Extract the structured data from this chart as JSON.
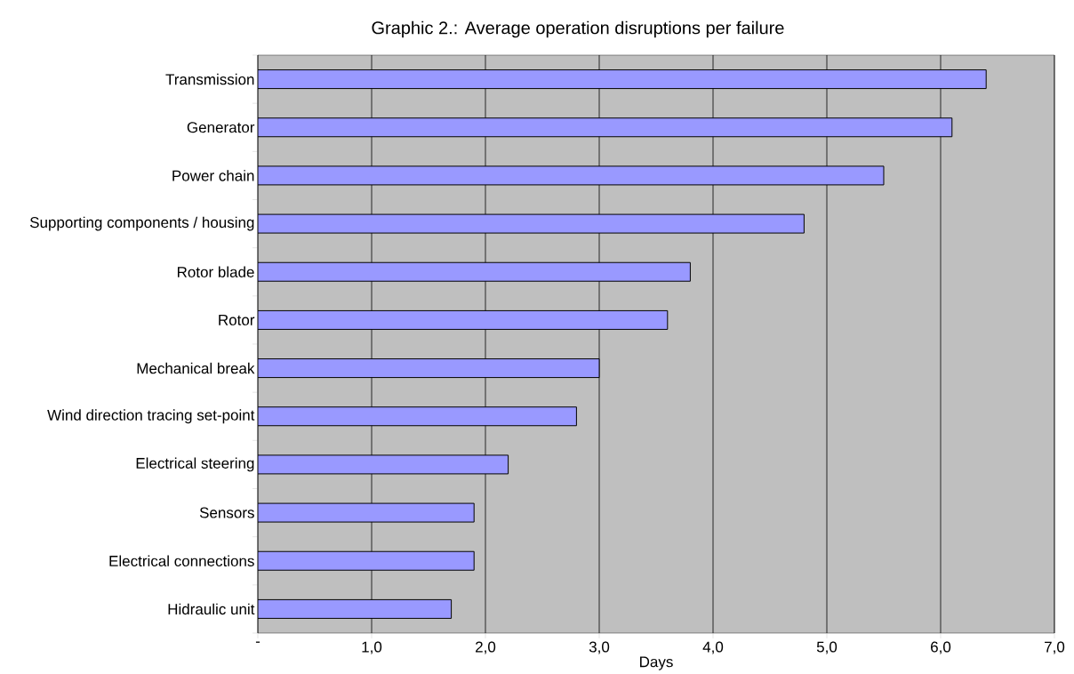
{
  "chart_data": {
    "type": "bar",
    "orientation": "horizontal",
    "title": "Graphic 2.: Average operation disruptions per failure",
    "xlabel": "Days",
    "categories": [
      "Transmission",
      "Generator",
      "Power chain",
      "Supporting components / housing",
      "Rotor blade",
      "Rotor",
      "Mechanical break",
      "Wind direction tracing set-point",
      "Electrical steering",
      "Sensors",
      "Electrical connections",
      "Hidraulic unit"
    ],
    "values": [
      6.4,
      6.1,
      5.5,
      4.8,
      3.8,
      3.6,
      3.0,
      2.8,
      2.2,
      1.9,
      1.9,
      1.7
    ],
    "color": "#9999ff",
    "xlim": [
      0,
      7
    ],
    "xticks": [
      {
        "value": 0,
        "label": "-"
      },
      {
        "value": 1,
        "label": "1,0"
      },
      {
        "value": 2,
        "label": "2,0"
      },
      {
        "value": 3,
        "label": "3,0"
      },
      {
        "value": 4,
        "label": "4,0"
      },
      {
        "value": 5,
        "label": "5,0"
      },
      {
        "value": 6,
        "label": "6,0"
      },
      {
        "value": 7,
        "label": "7,0"
      }
    ],
    "grid": "x"
  }
}
